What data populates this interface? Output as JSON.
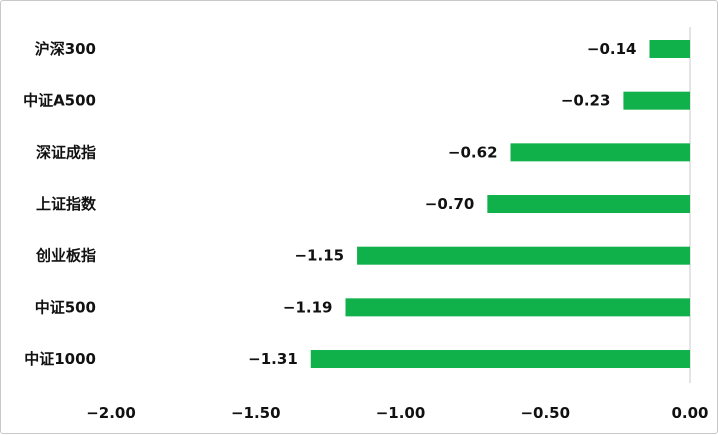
{
  "chart_data": {
    "type": "bar",
    "orientation": "horizontal",
    "categories": [
      "沪深300",
      "中证A500",
      "深证成指",
      "上证指数",
      "创业板指",
      "中证500",
      "中证1000"
    ],
    "values": [
      -0.14,
      -0.23,
      -0.62,
      -0.7,
      -1.15,
      -1.19,
      -1.31
    ],
    "value_labels": [
      "−0.14",
      "−0.23",
      "−0.62",
      "−0.70",
      "−1.15",
      "−1.19",
      "−1.31"
    ],
    "x_ticks": [
      -2.0,
      -1.5,
      -1.0,
      -0.5,
      0.0
    ],
    "x_tick_labels": [
      "−2.00",
      "−1.50",
      "−1.00",
      "−0.50",
      "0.00"
    ],
    "xlim": [
      -2.0,
      0.0
    ],
    "grid": false,
    "bar_color": "#10b14b",
    "axis_color": "#c9c9c9"
  }
}
